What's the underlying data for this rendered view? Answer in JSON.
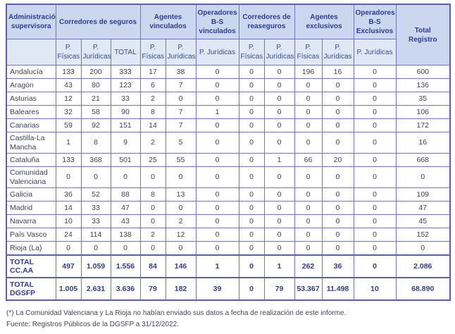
{
  "table": {
    "corner_label": "Administración supervisora",
    "groups": [
      {
        "label": "Corredores de seguros",
        "colspan": 3
      },
      {
        "label": "Agentes vinculados",
        "colspan": 2
      },
      {
        "label": "Operadores B-S vinculados",
        "colspan": 1
      },
      {
        "label": "Corredores de reaseguros",
        "colspan": 2
      },
      {
        "label": "Agentes exclusivos",
        "colspan": 2
      },
      {
        "label": "Operadores B-S Exclusivos",
        "colspan": 1
      },
      {
        "label": "Total Registro",
        "colspan": 1
      }
    ],
    "subheaders": [
      "P. Físicas",
      "P. Jurídicas",
      "TOTAL",
      "P. Físicas",
      "P. Jurídicas",
      "P. Jurídicas",
      "P. Físicas",
      "P. Jurídicas",
      "P. Físicas",
      "P. Jurídicas",
      "P. Jurídicas"
    ],
    "rows": [
      {
        "region": "Andalucía",
        "values": [
          "133",
          "200",
          "333",
          "17",
          "38",
          "0",
          "0",
          "0",
          "196",
          "16",
          "0",
          "600"
        ]
      },
      {
        "region": "Aragón",
        "values": [
          "43",
          "80",
          "123",
          "6",
          "7",
          "0",
          "0",
          "0",
          "0",
          "0",
          "0",
          "136"
        ]
      },
      {
        "region": "Asturias",
        "values": [
          "12",
          "21",
          "33",
          "2",
          "0",
          "0",
          "0",
          "0",
          "0",
          "0",
          "0",
          "35"
        ]
      },
      {
        "region": "Baleares",
        "values": [
          "32",
          "58",
          "90",
          "8",
          "7",
          "1",
          "0",
          "0",
          "0",
          "0",
          "0",
          "106"
        ]
      },
      {
        "region": "Canarias",
        "values": [
          "59",
          "92",
          "151",
          "14",
          "7",
          "0",
          "0",
          "0",
          "0",
          "0",
          "0",
          "172"
        ]
      },
      {
        "region": "Castilla-La Mancha",
        "values": [
          "1",
          "8",
          "9",
          "2",
          "5",
          "0",
          "0",
          "0",
          "0",
          "0",
          "0",
          "16"
        ]
      },
      {
        "region": "Cataluña",
        "values": [
          "133",
          "368",
          "501",
          "25",
          "55",
          "0",
          "0",
          "1",
          "66",
          "20",
          "0",
          "668"
        ]
      },
      {
        "region": "Comunidad Valenciana",
        "values": [
          "0",
          "0",
          "0",
          "0",
          "0",
          "0",
          "0",
          "0",
          "0",
          "0",
          "0",
          "0"
        ]
      },
      {
        "region": "Galicia",
        "values": [
          "36",
          "52",
          "88",
          "8",
          "13",
          "0",
          "0",
          "0",
          "0",
          "0",
          "0",
          "109"
        ]
      },
      {
        "region": "Madrid",
        "values": [
          "14",
          "33",
          "47",
          "0",
          "0",
          "0",
          "0",
          "0",
          "0",
          "0",
          "0",
          "47"
        ]
      },
      {
        "region": "Navarra",
        "values": [
          "10",
          "33",
          "43",
          "0",
          "2",
          "0",
          "0",
          "0",
          "0",
          "0",
          "0",
          "45"
        ]
      },
      {
        "region": "País Vasco",
        "values": [
          "24",
          "114",
          "138",
          "2",
          "12",
          "0",
          "0",
          "0",
          "0",
          "0",
          "0",
          "152"
        ]
      },
      {
        "region": "Rioja (La)",
        "values": [
          "0",
          "0",
          "0",
          "0",
          "0",
          "0",
          "0",
          "0",
          "0",
          "0",
          "0",
          "0"
        ]
      }
    ],
    "total_rows": [
      {
        "region": "TOTAL CC.AA",
        "values": [
          "497",
          "1.059",
          "1.556",
          "84",
          "146",
          "1",
          "0",
          "1",
          "262",
          "36",
          "0",
          "2.086"
        ]
      },
      {
        "region": "TOTAL DGSFP",
        "values": [
          "1.005",
          "2.631",
          "3.636",
          "79",
          "182",
          "39",
          "0",
          "79",
          "53.367",
          "11.498",
          "10",
          "68.890"
        ]
      }
    ]
  },
  "footer": {
    "note": "(*) La Comunidad Valenciana y La Rioja no habían enviado sus datos a fecha de realización de este informe.",
    "source": "Fuente: Registros Públicos de la DGSFP a 31/12/2022."
  },
  "colors": {
    "outer_border": "#5f5fa8",
    "inner_border": "#7373ba",
    "header_bg": "#cbd7ef",
    "subheader_bg": "#e0e7f5",
    "header_text": "#2d3e92",
    "body_text": "#40405f",
    "total_text": "#333c88"
  }
}
